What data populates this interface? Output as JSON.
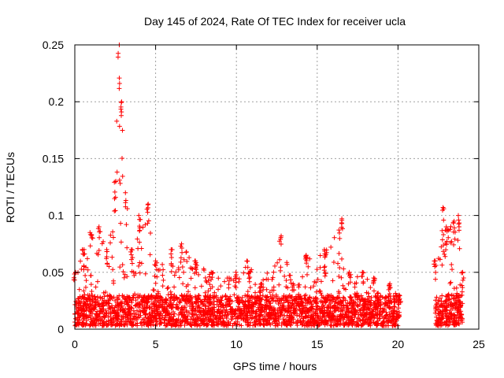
{
  "chart_data": {
    "type": "scatter",
    "title": "Day 145 of 2024, Rate Of TEC Index for receiver ucla",
    "xlabel": "GPS time / hours",
    "ylabel": "ROTI / TECUs",
    "xlim": [
      0,
      25
    ],
    "ylim": [
      0,
      0.25
    ],
    "xticks": [
      0,
      5,
      10,
      15,
      20,
      25
    ],
    "yticks": [
      0,
      0.05,
      0.1,
      0.15,
      0.2,
      0.25
    ],
    "xtick_labels": [
      "0",
      "5",
      "10",
      "15",
      "20",
      "25"
    ],
    "ytick_labels": [
      "0",
      "0.05",
      "0.1",
      "0.15",
      "0.2",
      "0.25"
    ],
    "grid": true,
    "marker": "+",
    "series": [
      {
        "name": "ROTI",
        "color": "#ff0000",
        "data_gaps_hours": [
          [
            20.1,
            22.3
          ]
        ],
        "envelope_x": [
          0,
          0.5,
          1.0,
          1.5,
          2.0,
          2.5,
          2.7,
          2.9,
          3.2,
          3.5,
          4.0,
          4.5,
          5.0,
          6.0,
          6.6,
          7.5,
          8.5,
          9.5,
          10.0,
          10.7,
          11.5,
          12.7,
          13.5,
          14.3,
          15.5,
          16.5,
          17.0,
          17.8,
          18.5,
          19.5,
          20.1,
          22.3,
          22.8,
          23.0,
          23.5,
          23.8,
          24.0
        ],
        "envelope_y": [
          0.05,
          0.07,
          0.085,
          0.09,
          0.07,
          0.13,
          0.25,
          0.2,
          0.12,
          0.07,
          0.1,
          0.11,
          0.06,
          0.07,
          0.075,
          0.06,
          0.05,
          0.045,
          0.05,
          0.06,
          0.04,
          0.082,
          0.04,
          0.065,
          0.07,
          0.097,
          0.05,
          0.05,
          0.045,
          0.04,
          0.03,
          0.06,
          0.107,
          0.09,
          0.095,
          0.1,
          0.05
        ],
        "baseline_range": [
          0.003,
          0.02
        ]
      }
    ]
  }
}
